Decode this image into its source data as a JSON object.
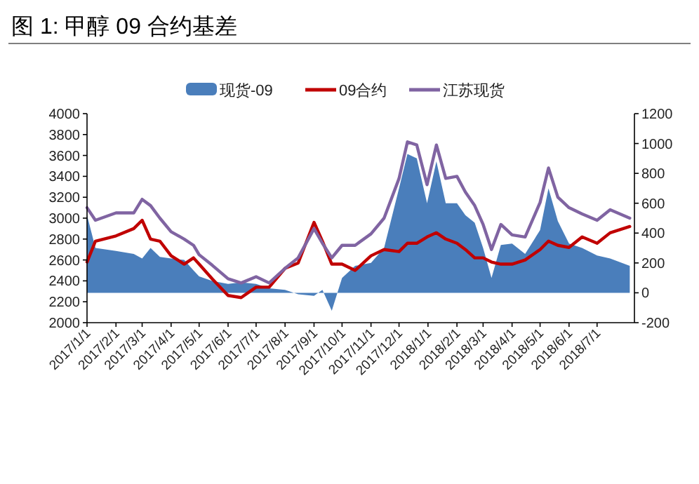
{
  "chart_data": {
    "type": "line",
    "title": "图 1:  甲醇 09 合约基差",
    "legend": "top",
    "grid": false,
    "line_style": "solid",
    "marker": "none",
    "x": [
      "2017-01-01",
      "2017-01-10",
      "2017-02-01",
      "2017-02-20",
      "2017-03-01",
      "2017-03-10",
      "2017-03-20",
      "2017-04-01",
      "2017-04-15",
      "2017-04-25",
      "2017-05-01",
      "2017-05-15",
      "2017-06-01",
      "2017-06-15",
      "2017-07-01",
      "2017-07-15",
      "2017-08-01",
      "2017-08-15",
      "2017-09-01",
      "2017-09-10",
      "2017-09-20",
      "2017-10-01",
      "2017-10-15",
      "2017-11-01",
      "2017-11-15",
      "2017-12-01",
      "2017-12-10",
      "2017-12-20",
      "2017-12-31",
      "2018-01-10",
      "2018-01-20",
      "2018-02-01",
      "2018-02-10",
      "2018-02-20",
      "2018-03-01",
      "2018-03-10",
      "2018-03-20",
      "2018-04-01",
      "2018-04-15",
      "2018-05-01",
      "2018-05-10",
      "2018-05-20",
      "2018-06-01",
      "2018-06-15",
      "2018-07-01",
      "2018-07-15",
      "2018-08-05"
    ],
    "series": [
      {
        "name": "现货-09",
        "type": "area",
        "axis": "y2",
        "color": "#4a7ebb",
        "values": [
          520,
          300,
          280,
          260,
          230,
          300,
          240,
          230,
          220,
          150,
          110,
          80,
          60,
          70,
          60,
          30,
          20,
          -10,
          -20,
          20,
          -120,
          100,
          180,
          200,
          300,
          700,
          930,
          900,
          600,
          880,
          600,
          600,
          520,
          470,
          300,
          100,
          320,
          330,
          260,
          420,
          700,
          480,
          330,
          300,
          250,
          230,
          180
        ]
      },
      {
        "name": "09合约",
        "color": "#c00000",
        "values": [
          2580,
          2780,
          2830,
          2900,
          2980,
          2800,
          2780,
          2640,
          2560,
          2620,
          2560,
          2420,
          2260,
          2240,
          2340,
          2340,
          2520,
          2570,
          2960,
          2780,
          2560,
          2560,
          2500,
          2640,
          2700,
          2680,
          2760,
          2760,
          2820,
          2860,
          2800,
          2760,
          2700,
          2620,
          2620,
          2580,
          2560,
          2560,
          2600,
          2700,
          2780,
          2740,
          2720,
          2820,
          2760,
          2860,
          2920
        ]
      },
      {
        "name": "江苏现货",
        "color": "#8064a2",
        "values": [
          3100,
          2980,
          3050,
          3050,
          3180,
          3120,
          3000,
          2870,
          2800,
          2740,
          2650,
          2550,
          2420,
          2380,
          2440,
          2380,
          2520,
          2620,
          2900,
          2760,
          2620,
          2740,
          2740,
          2850,
          3000,
          3380,
          3730,
          3700,
          3320,
          3700,
          3380,
          3400,
          3250,
          3120,
          2940,
          2700,
          2940,
          2840,
          2820,
          3150,
          3480,
          3200,
          3100,
          3040,
          2980,
          3080,
          3000
        ]
      }
    ],
    "xlim": [
      "2017-01-01",
      "2018-08-10"
    ],
    "xticks": [
      {
        "value": "2017-01-01",
        "label": "2017/1/1"
      },
      {
        "value": "2017-02-01",
        "label": "2017/2/1"
      },
      {
        "value": "2017-03-01",
        "label": "2017/3/1"
      },
      {
        "value": "2017-04-01",
        "label": "2017/4/1"
      },
      {
        "value": "2017-05-01",
        "label": "2017/5/1"
      },
      {
        "value": "2017-06-01",
        "label": "2017/6/1"
      },
      {
        "value": "2017-07-01",
        "label": "2017/7/1"
      },
      {
        "value": "2017-08-01",
        "label": "2017/8/1"
      },
      {
        "value": "2017-09-01",
        "label": "2017/9/1"
      },
      {
        "value": "2017-10-01",
        "label": "2017/10/1"
      },
      {
        "value": "2017-11-01",
        "label": "2017/11/1"
      },
      {
        "value": "2017-12-01",
        "label": "2017/12/1"
      },
      {
        "value": "2018-01-01",
        "label": "2018/1/1"
      },
      {
        "value": "2018-02-01",
        "label": "2018/2/1"
      },
      {
        "value": "2018-03-01",
        "label": "2018/3/1"
      },
      {
        "value": "2018-04-01",
        "label": "2018/4/1"
      },
      {
        "value": "2018-05-01",
        "label": "2018/5/1"
      },
      {
        "value": "2018-06-01",
        "label": "2018/6/1"
      },
      {
        "value": "2018-07-01",
        "label": "2018/7/1"
      }
    ],
    "ylim": [
      2000,
      4000
    ],
    "yticks": [
      2000,
      2200,
      2400,
      2600,
      2800,
      3000,
      3200,
      3400,
      3600,
      3800,
      4000
    ],
    "y2lim": [
      -200,
      1200
    ],
    "y2ticks": [
      -200,
      0,
      200,
      400,
      600,
      800,
      1000,
      1200
    ]
  }
}
